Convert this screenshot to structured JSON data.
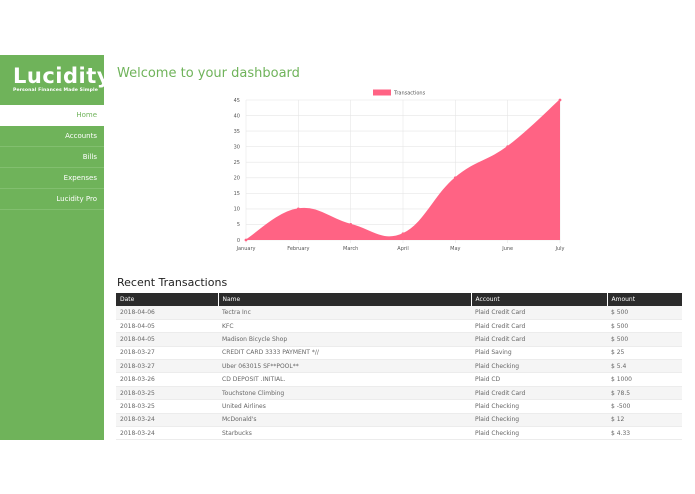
{
  "brand": {
    "name": "Lucidity",
    "tagline": "Personal Finances Made Simple"
  },
  "nav": [
    {
      "label": "Home",
      "active": true
    },
    {
      "label": "Accounts",
      "active": false
    },
    {
      "label": "Bills",
      "active": false
    },
    {
      "label": "Expenses",
      "active": false
    },
    {
      "label": "Lucidity Pro",
      "active": false
    }
  ],
  "page_title": "Welcome to your dashboard",
  "chart_data": {
    "type": "area",
    "categories": [
      "January",
      "February",
      "March",
      "April",
      "May",
      "June",
      "July"
    ],
    "series": [
      {
        "name": "Transactions",
        "values": [
          0,
          10,
          5,
          2,
          20,
          30,
          45
        ],
        "color": "#ff6384"
      }
    ],
    "ylim": [
      0,
      45
    ],
    "yticks": [
      0,
      5,
      10,
      15,
      20,
      25,
      30,
      35,
      40,
      45
    ],
    "grid": true,
    "legend": "top"
  },
  "transactions": {
    "title": "Recent Transactions",
    "columns": [
      "Date",
      "Name",
      "Account",
      "Amount"
    ],
    "rows": [
      [
        "2018-04-06",
        "Tectra Inc",
        "Plaid Credit Card",
        "$ 500"
      ],
      [
        "2018-04-05",
        "KFC",
        "Plaid Credit Card",
        "$ 500"
      ],
      [
        "2018-04-05",
        "Madison Bicycle Shop",
        "Plaid Credit Card",
        "$ 500"
      ],
      [
        "2018-03-27",
        "CREDIT CARD 3333 PAYMENT *//",
        "Plaid Saving",
        "$ 25"
      ],
      [
        "2018-03-27",
        "Uber 063015 SF**POOL**",
        "Plaid Checking",
        "$ 5.4"
      ],
      [
        "2018-03-26",
        "CD DEPOSIT .INITIAL.",
        "Plaid CD",
        "$ 1000"
      ],
      [
        "2018-03-25",
        "Touchstone Climbing",
        "Plaid Credit Card",
        "$ 78.5"
      ],
      [
        "2018-03-25",
        "United Airlines",
        "Plaid Checking",
        "$ -500"
      ],
      [
        "2018-03-24",
        "McDonald's",
        "Plaid Checking",
        "$ 12"
      ],
      [
        "2018-03-24",
        "Starbucks",
        "Plaid Checking",
        "$ 4.33"
      ]
    ]
  }
}
